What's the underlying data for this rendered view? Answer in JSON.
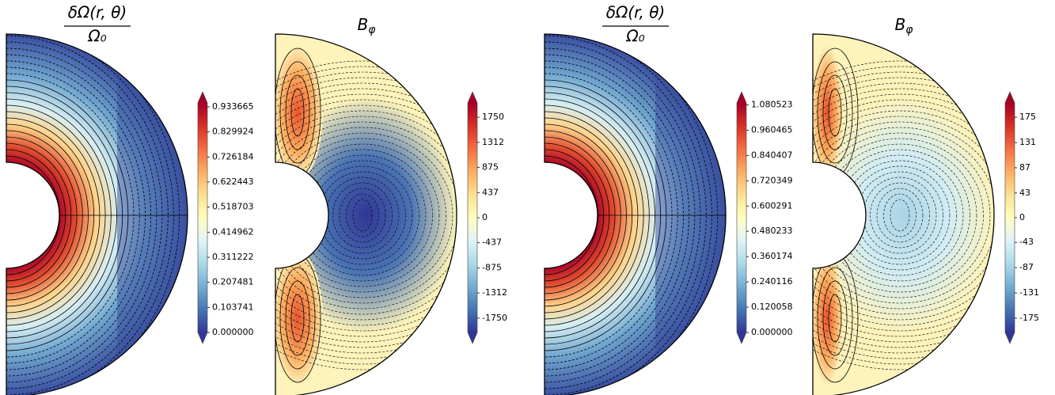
{
  "chart_data": [
    {
      "type": "contour",
      "title": {
        "numerator": "δΩ(r, θ)",
        "denominator": "Ω₀"
      },
      "colormap": "RdYlBu_r",
      "ylim": [
        0,
        0.95
      ],
      "yticks": [
        {
          "value": 0,
          "label": "0.000000"
        },
        0.103741,
        0.207481,
        0.311222,
        0.414962,
        0.518703,
        0.622443,
        0.726184,
        0.829924,
        0.933665
      ]
    },
    {
      "type": "contour",
      "title": {
        "base": "B",
        "subscript": "φ"
      },
      "colormap": "RdYlBu_r",
      "ylim": [
        -2000,
        2000
      ],
      "yticks": [
        -1750,
        -1312,
        -875,
        -437,
        0,
        437,
        875,
        1312,
        1750
      ]
    },
    {
      "type": "contour",
      "title": {
        "numerator": "δΩ(r, θ)",
        "denominator": "Ω₀"
      },
      "colormap": "RdYlBu_r",
      "ylim": [
        0,
        1.09
      ],
      "yticks": [
        {
          "value": 0,
          "label": "0.000000"
        },
        0.120058,
        0.240116,
        0.360174,
        0.480233,
        0.600291,
        0.720349,
        0.840407,
        0.960465,
        1.080523
      ]
    },
    {
      "type": "contour",
      "title": {
        "base": "B",
        "subscript": "φ"
      },
      "colormap": "RdYlBu_r",
      "ylim": [
        -200,
        200
      ],
      "yticks": [
        -175,
        -131,
        -87,
        -43,
        0,
        43,
        87,
        131,
        175
      ]
    }
  ]
}
